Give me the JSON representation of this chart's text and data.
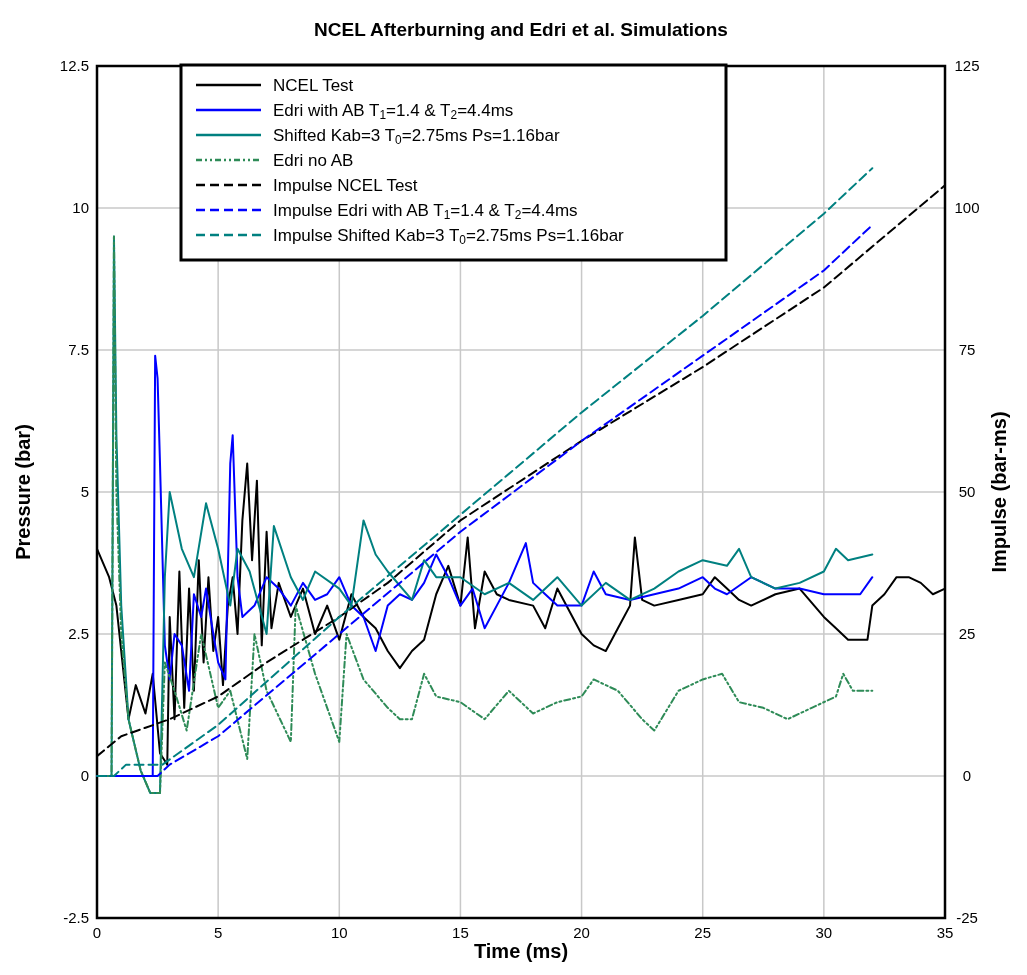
{
  "chart_data": {
    "type": "line",
    "title": "NCEL Afterburning and Edri et al. Simulations",
    "xlabel": "Time (ms)",
    "ylabel": "Pressure (bar)",
    "y2label": "Impulse (bar-ms)",
    "xlim": [
      0,
      35
    ],
    "xticks": [
      0,
      5,
      10,
      15,
      20,
      25,
      30,
      35
    ],
    "ylim": [
      -2.5,
      12.5
    ],
    "yticks": [
      -2.5,
      0,
      2.5,
      5,
      7.5,
      10,
      12.5
    ],
    "y2lim": [
      -25,
      125
    ],
    "y2ticks": [
      -25,
      0,
      25,
      50,
      75,
      100,
      125
    ],
    "grid": true,
    "legend": "top left",
    "series": [
      {
        "name": "NCEL Test",
        "color": "#000000",
        "line_style": "solid",
        "x": [
          0,
          0.5,
          0.8,
          1.0,
          1.3,
          1.6,
          2.0,
          2.3,
          2.6,
          2.9,
          3.0,
          3.2,
          3.4,
          3.6,
          3.8,
          4.0,
          4.2,
          4.4,
          4.6,
          4.8,
          5.0,
          5.2,
          5.4,
          5.6,
          5.8,
          6.0,
          6.2,
          6.4,
          6.6,
          6.8,
          7.0,
          7.2,
          7.5,
          8.0,
          8.5,
          9.0,
          9.5,
          10.0,
          10.5,
          11.0,
          11.5,
          12.0,
          12.5,
          13.0,
          13.5,
          14.0,
          14.5,
          15.0,
          15.3,
          15.6,
          16.0,
          16.5,
          17.0,
          18.0,
          18.5,
          19.0,
          20.0,
          20.5,
          21.0,
          21.5,
          22.0,
          22.2,
          22.5,
          23.0,
          24.0,
          25.0,
          25.5,
          26.0,
          26.5,
          27.0,
          28.0,
          29.0,
          30.0,
          30.5,
          31.0,
          31.5,
          31.8,
          32.0,
          32.5,
          33.0,
          33.5,
          34.0,
          34.5,
          35.0
        ],
        "values": [
          4.0,
          3.5,
          3.0,
          2.2,
          1.0,
          1.6,
          1.1,
          1.8,
          0.4,
          0.2,
          2.8,
          1.0,
          3.6,
          1.2,
          3.3,
          1.5,
          3.8,
          2.0,
          3.5,
          2.2,
          2.8,
          1.6,
          3.0,
          3.5,
          2.5,
          4.5,
          5.5,
          3.8,
          5.2,
          2.3,
          4.3,
          2.6,
          3.4,
          2.8,
          3.3,
          2.5,
          3.0,
          2.4,
          3.2,
          2.8,
          2.6,
          2.2,
          1.9,
          2.2,
          2.4,
          3.2,
          3.7,
          3.0,
          4.2,
          2.6,
          3.6,
          3.2,
          3.1,
          3.0,
          2.6,
          3.3,
          2.5,
          2.3,
          2.2,
          2.6,
          3.0,
          4.2,
          3.1,
          3.0,
          3.1,
          3.2,
          3.5,
          3.3,
          3.1,
          3.0,
          3.2,
          3.3,
          2.8,
          2.6,
          2.4,
          2.4,
          2.4,
          3.0,
          3.2,
          3.5,
          3.5,
          3.4,
          3.2,
          3.3
        ]
      },
      {
        "name": "Edri with AB T$_{1}$=1.4 & T$_{2}$=4.4ms",
        "color": "#0000ff",
        "line_style": "solid",
        "x": [
          0,
          2.3,
          2.4,
          2.5,
          2.6,
          2.8,
          3.0,
          3.2,
          3.5,
          3.8,
          4.0,
          4.3,
          4.5,
          4.8,
          5.0,
          5.3,
          5.5,
          5.6,
          5.8,
          6.0,
          6.5,
          7.0,
          7.5,
          8.0,
          8.5,
          9.0,
          9.5,
          10.0,
          10.5,
          11.0,
          11.5,
          12.0,
          12.5,
          13.0,
          13.5,
          14.0,
          14.5,
          15.0,
          15.5,
          16.0,
          16.5,
          17.0,
          17.7,
          18.0,
          18.5,
          19.0,
          20.0,
          20.5,
          21.0,
          22.0,
          23.0,
          24.0,
          25.0,
          25.5,
          26.0,
          27.0,
          27.5,
          28.0,
          29.0,
          30.0,
          31.0,
          31.5,
          32.0
        ],
        "values": [
          0,
          0,
          7.4,
          7.0,
          5.5,
          2.3,
          1.7,
          2.5,
          2.3,
          1.5,
          3.2,
          2.8,
          3.3,
          2.5,
          2.0,
          1.7,
          5.5,
          6.0,
          3.5,
          2.8,
          3.0,
          3.5,
          3.3,
          3.0,
          3.4,
          3.1,
          3.2,
          3.5,
          3.0,
          2.8,
          2.2,
          3.0,
          3.2,
          3.1,
          3.4,
          3.9,
          3.5,
          3.0,
          3.3,
          2.6,
          3.0,
          3.4,
          4.1,
          3.4,
          3.2,
          3.0,
          3.0,
          3.6,
          3.2,
          3.1,
          3.2,
          3.3,
          3.5,
          3.3,
          3.2,
          3.5,
          3.4,
          3.3,
          3.3,
          3.2,
          3.2,
          3.2,
          3.5
        ]
      },
      {
        "name": "Shifted Kab=3 T$_{0}$=2.75ms Ps=1.16bar",
        "color": "#008080",
        "line_style": "solid",
        "x": [
          0,
          0.6,
          0.7,
          0.8,
          1.0,
          1.3,
          1.8,
          2.2,
          2.6,
          2.8,
          3.0,
          3.5,
          4.0,
          4.5,
          5.0,
          5.5,
          5.8,
          6.3,
          7.0,
          7.3,
          8.0,
          8.5,
          9.0,
          10.0,
          10.5,
          11.0,
          11.5,
          12.0,
          13.0,
          13.5,
          14.0,
          15.0,
          16.0,
          17.0,
          18.0,
          19.0,
          20.0,
          21.0,
          22.0,
          23.0,
          24.0,
          25.0,
          26.0,
          26.5,
          27.0,
          28.0,
          29.0,
          30.0,
          30.5,
          31.0,
          32.0
        ],
        "values": [
          0,
          0,
          9.5,
          6.0,
          3.0,
          1.0,
          0.1,
          -0.3,
          -0.3,
          3.5,
          5.0,
          4.0,
          3.5,
          4.8,
          4.0,
          3.0,
          4.0,
          3.6,
          2.5,
          4.4,
          3.5,
          3.1,
          3.6,
          3.3,
          3.0,
          4.5,
          3.9,
          3.6,
          3.1,
          3.8,
          3.5,
          3.5,
          3.2,
          3.4,
          3.1,
          3.5,
          3.0,
          3.4,
          3.1,
          3.3,
          3.6,
          3.8,
          3.7,
          4.0,
          3.5,
          3.3,
          3.4,
          3.6,
          4.0,
          3.8,
          3.9
        ]
      },
      {
        "name": "Edri no AB",
        "color": "#2e8b57",
        "line_style": "dotted",
        "x": [
          0,
          0.6,
          0.7,
          0.8,
          1.0,
          1.3,
          1.8,
          2.2,
          2.6,
          2.8,
          3.2,
          3.7,
          4.3,
          5.0,
          5.5,
          6.2,
          6.5,
          7.0,
          8.0,
          8.2,
          9.0,
          9.5,
          10.0,
          10.3,
          11.0,
          12.0,
          12.5,
          13.0,
          13.5,
          14.0,
          15.0,
          16.0,
          17.0,
          18.0,
          19.0,
          20.0,
          20.5,
          21.5,
          22.5,
          23.0,
          24.0,
          25.0,
          25.8,
          26.5,
          27.5,
          28.5,
          29.5,
          30.5,
          30.8,
          31.2,
          32.0
        ],
        "values": [
          0,
          0,
          9.5,
          5.0,
          2.5,
          1.0,
          0.1,
          -0.3,
          -0.3,
          2.0,
          1.5,
          0.8,
          2.5,
          1.2,
          1.5,
          0.3,
          2.5,
          1.5,
          0.6,
          3.0,
          1.8,
          1.2,
          0.6,
          2.5,
          1.7,
          1.2,
          1.0,
          1.0,
          1.8,
          1.4,
          1.3,
          1.0,
          1.5,
          1.1,
          1.3,
          1.4,
          1.7,
          1.5,
          1.0,
          0.8,
          1.5,
          1.7,
          1.8,
          1.3,
          1.2,
          1.0,
          1.2,
          1.4,
          1.8,
          1.5,
          1.5
        ]
      },
      {
        "name": "Impulse NCEL Test",
        "color": "#000000",
        "line_style": "dashed",
        "axis": "y2",
        "x": [
          0,
          1,
          2,
          3,
          5,
          7,
          10,
          12,
          15,
          20,
          25,
          30,
          35
        ],
        "values": [
          3.5,
          7,
          8.5,
          10,
          14,
          20,
          28,
          34,
          45,
          59,
          72,
          86,
          104
        ]
      },
      {
        "name": "Impulse Edri with AB T$_{1}$=1.4 & T$_{2}$=4.4ms",
        "color": "#0000ff",
        "line_style": "dashed",
        "axis": "y2",
        "x": [
          0,
          2.5,
          3,
          5,
          10,
          15,
          20,
          25,
          30,
          32
        ],
        "values": [
          0,
          0,
          2,
          7,
          25,
          43,
          59,
          74,
          89,
          97
        ]
      },
      {
        "name": "Impulse Shifted Kab=3 T$_{0}$=2.75ms Ps=1.16bar",
        "color": "#008080",
        "line_style": "dashed",
        "axis": "y2",
        "x": [
          0,
          0.7,
          1.2,
          2.7,
          5,
          10,
          15,
          20,
          25,
          30,
          32
        ],
        "values": [
          0,
          0,
          2,
          2,
          9,
          28,
          46,
          64,
          81,
          99,
          107
        ]
      }
    ]
  }
}
